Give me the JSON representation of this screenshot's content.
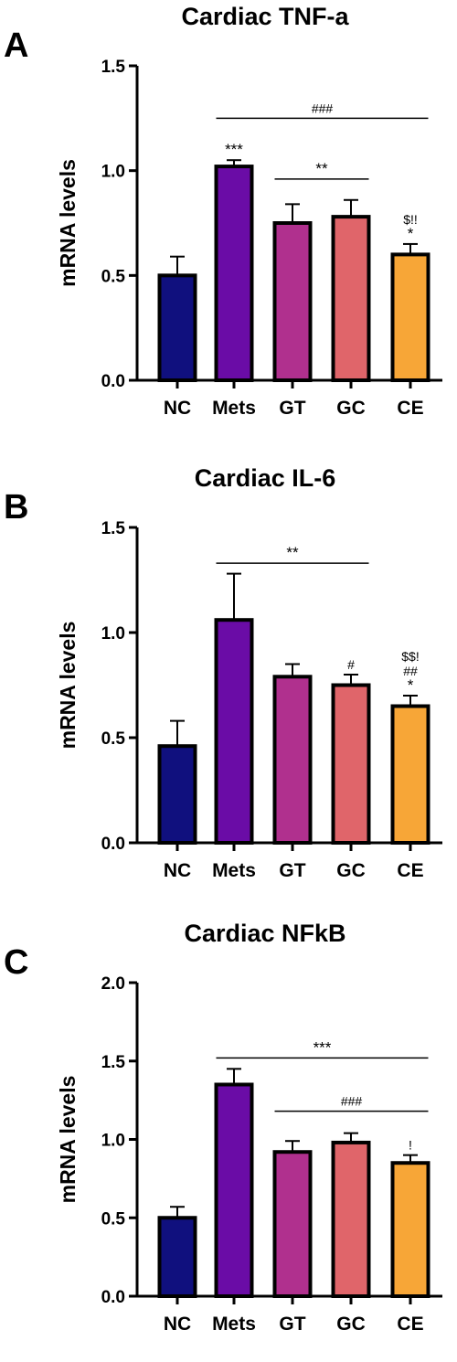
{
  "chart_data": [
    {
      "panel": "A",
      "type": "bar",
      "title": "Cardiac TNF-a",
      "ylabel": "mRNA levels",
      "xlabel": "",
      "ylim": [
        0,
        1.5
      ],
      "yticks": [
        "0.0",
        "0.5",
        "1.0",
        "1.5"
      ],
      "categories": [
        "NC",
        "Mets",
        "GT",
        "GC",
        "CE"
      ],
      "values": [
        0.5,
        1.02,
        0.75,
        0.78,
        0.6
      ],
      "errors": [
        0.09,
        0.03,
        0.09,
        0.08,
        0.05
      ],
      "colors": [
        "#10107e",
        "#6a0ca6",
        "#b0308e",
        "#e0656a",
        "#f7a637"
      ],
      "bar_labels": [
        [],
        [
          "***"
        ],
        [],
        [],
        [
          "$!!",
          "*"
        ]
      ],
      "brackets": [
        {
          "from": 1,
          "to": 4,
          "y": 1.25,
          "label": "###"
        },
        {
          "from": 2,
          "to": 3,
          "y": 0.96,
          "label": "**"
        }
      ]
    },
    {
      "panel": "B",
      "type": "bar",
      "title": "Cardiac IL-6",
      "ylabel": "mRNA levels",
      "xlabel": "",
      "ylim": [
        0,
        1.5
      ],
      "yticks": [
        "0.0",
        "0.5",
        "1.0",
        "1.5"
      ],
      "categories": [
        "NC",
        "Mets",
        "GT",
        "GC",
        "CE"
      ],
      "values": [
        0.46,
        1.06,
        0.79,
        0.75,
        0.65
      ],
      "errors": [
        0.12,
        0.22,
        0.06,
        0.05,
        0.05
      ],
      "colors": [
        "#10107e",
        "#6a0ca6",
        "#b0308e",
        "#e0656a",
        "#f7a637"
      ],
      "bar_labels": [
        [],
        [],
        [],
        [
          "#"
        ],
        [
          "$$!",
          "##",
          "*"
        ]
      ],
      "brackets": [
        {
          "from": 1,
          "to": 3,
          "y": 1.33,
          "label": "**"
        }
      ]
    },
    {
      "panel": "C",
      "type": "bar",
      "title": "Cardiac NFkB",
      "ylabel": "mRNA levels",
      "xlabel": "",
      "ylim": [
        0,
        2.0
      ],
      "yticks": [
        "0.0",
        "0.5",
        "1.0",
        "1.5",
        "2.0"
      ],
      "categories": [
        "NC",
        "Mets",
        "GT",
        "GC",
        "CE"
      ],
      "values": [
        0.5,
        1.35,
        0.92,
        0.98,
        0.85
      ],
      "errors": [
        0.07,
        0.1,
        0.07,
        0.06,
        0.05
      ],
      "colors": [
        "#10107e",
        "#6a0ca6",
        "#b0308e",
        "#e0656a",
        "#f7a637"
      ],
      "bar_labels": [
        [],
        [],
        [],
        [],
        [
          "!"
        ]
      ],
      "brackets": [
        {
          "from": 1,
          "to": 4,
          "y": 1.52,
          "label": "***"
        },
        {
          "from": 2,
          "to": 4,
          "y": 1.18,
          "label": "###"
        }
      ]
    }
  ]
}
